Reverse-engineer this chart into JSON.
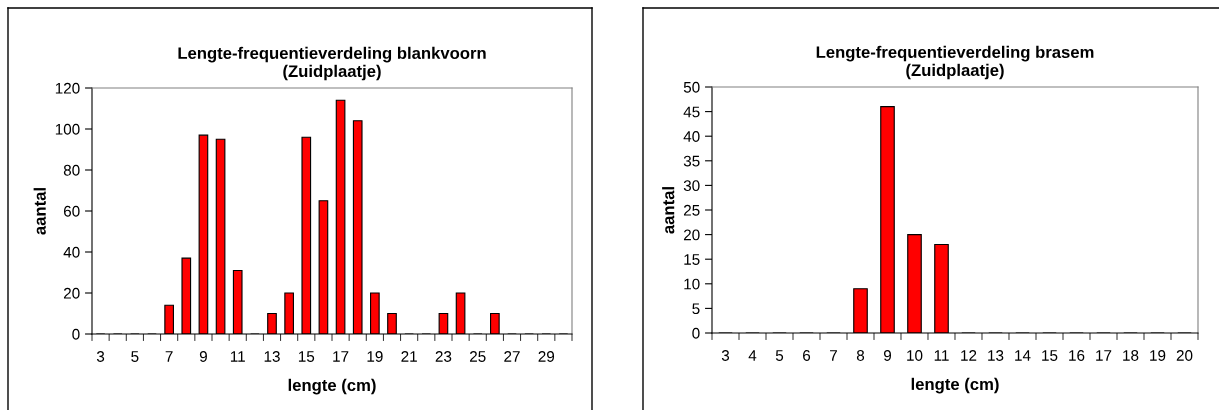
{
  "chart_data": [
    {
      "type": "bar",
      "title": "Lengte-frequentieverdeling blankvoorn\n(Zuidplaatje)",
      "xlabel": "lengte (cm)",
      "ylabel": "aantal",
      "categories": [
        "3",
        null,
        "5",
        null,
        "7",
        null,
        "9",
        null,
        "11",
        null,
        "13",
        null,
        "15",
        null,
        "17",
        null,
        "19",
        null,
        "21",
        null,
        "23",
        null,
        "25",
        null,
        "27",
        null,
        "29",
        null
      ],
      "series": [
        {
          "color": "#ff0000",
          "values": [
            0,
            0,
            0,
            0,
            14,
            37,
            97,
            95,
            31,
            0,
            10,
            20,
            96,
            65,
            114,
            104,
            20,
            10,
            0,
            0,
            10,
            20,
            0,
            10,
            0,
            0,
            0,
            0
          ]
        }
      ],
      "ylim": [
        0,
        120
      ],
      "yticks": [
        0,
        20,
        40,
        60,
        80,
        100,
        120
      ],
      "grid": false
    },
    {
      "type": "bar",
      "title": "Lengte-frequentieverdeling brasem\n(Zuidplaatje)",
      "xlabel": "lengte (cm)",
      "ylabel": "aantal",
      "categories": [
        "3",
        "4",
        "5",
        "6",
        "7",
        "8",
        "9",
        "10",
        "11",
        "12",
        "13",
        "14",
        "15",
        "16",
        "17",
        "18",
        "19",
        "20"
      ],
      "series": [
        {
          "color": "#ff0000",
          "values": [
            0,
            0,
            0,
            0,
            0,
            9,
            46,
            20,
            18,
            0,
            0,
            0,
            0,
            0,
            0,
            0,
            0,
            0
          ]
        }
      ],
      "ylim": [
        0,
        50
      ],
      "yticks": [
        0,
        5,
        10,
        15,
        20,
        25,
        30,
        35,
        40,
        45,
        50
      ],
      "grid": false
    }
  ]
}
